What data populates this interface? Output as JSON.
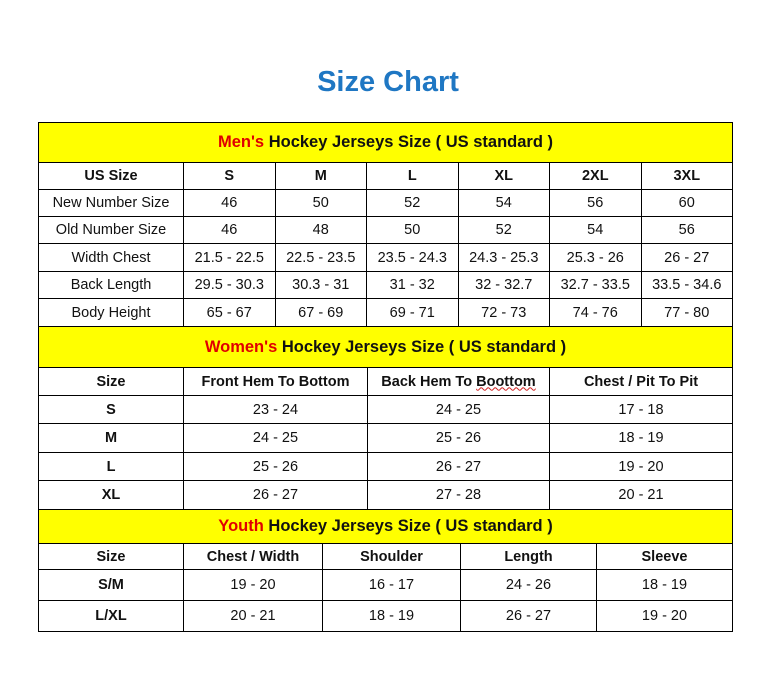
{
  "title": "Size Chart",
  "colors": {
    "title": "#1F77C3",
    "header_bg": "#FFFF00",
    "accent": "#E00000",
    "border": "#000000"
  },
  "men": {
    "title_accent": "Men's",
    "title_rest": " Hockey Jerseys Size ( US standard )",
    "columns": [
      "US Size",
      "S",
      "M",
      "L",
      "XL",
      "2XL",
      "3XL"
    ],
    "rows": [
      [
        "New Number Size",
        "46",
        "50",
        "52",
        "54",
        "56",
        "60"
      ],
      [
        "Old Number Size",
        "46",
        "48",
        "50",
        "52",
        "54",
        "56"
      ],
      [
        "Width Chest",
        "21.5 - 22.5",
        "22.5 - 23.5",
        "23.5 - 24.3",
        "24.3 - 25.3",
        "25.3 - 26",
        "26 - 27"
      ],
      [
        "Back Length",
        "29.5 - 30.3",
        "30.3 - 31",
        "31 - 32",
        "32 - 32.7",
        "32.7 - 33.5",
        "33.5 - 34.6"
      ],
      [
        "Body Height",
        "65 - 67",
        "67 - 69",
        "69 - 71",
        "72 - 73",
        "74 - 76",
        "77 - 80"
      ]
    ]
  },
  "women": {
    "title_accent": "Women's",
    "title_rest": " Hockey Jerseys Size ( US standard )",
    "columns": [
      "Size",
      "Front Hem To Bottom",
      "Back Hem To Boottom",
      "Chest / Pit To Pit"
    ],
    "rows": [
      [
        "S",
        "23 - 24",
        "24 - 25",
        "17 - 18"
      ],
      [
        "M",
        "24 - 25",
        "25 - 26",
        "18 - 19"
      ],
      [
        "L",
        "25 - 26",
        "26 - 27",
        "19 - 20"
      ],
      [
        "XL",
        "26 - 27",
        "27 - 28",
        "20 - 21"
      ]
    ]
  },
  "youth": {
    "title_accent": "Youth",
    "title_rest": " Hockey Jerseys Size ( US standard )",
    "columns": [
      "Size",
      "Chest / Width",
      "Shoulder",
      "Length",
      "Sleeve"
    ],
    "rows": [
      [
        "S/M",
        "19 - 20",
        "16 - 17",
        "24 - 26",
        "18 - 19"
      ],
      [
        "L/XL",
        "20 - 21",
        "18 - 19",
        "26 - 27",
        "19 - 20"
      ]
    ]
  }
}
